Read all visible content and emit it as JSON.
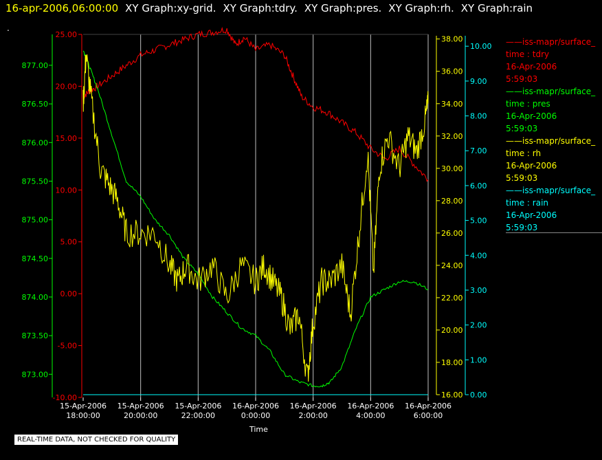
{
  "header": {
    "timestamp": "16-apr-2006,06:00:00",
    "graphs": [
      "XY Graph:xy-grid.",
      "XY Graph:tdry.",
      "XY Graph:pres.",
      "XY Graph:rh.",
      "XY Graph:rain"
    ],
    "dot": "."
  },
  "notice": "REAL-TIME DATA, NOT CHECKED FOR QUALITY",
  "colors": {
    "tdry": "#ff0000",
    "pres": "#00ff00",
    "rh": "#ffff00",
    "rain": "#00ffff",
    "grid": "#c0c0c0"
  },
  "legend": [
    {
      "name": "iss-mapr/surface_",
      "var": "time : tdry",
      "date": "16-Apr-2006",
      "time": "5:59:03",
      "color": "#ff0000"
    },
    {
      "name": "iss-mapr/surface_",
      "var": "time : pres",
      "date": "16-Apr-2006",
      "time": "5:59:03",
      "color": "#00ff00"
    },
    {
      "name": "iss-mapr/surface_",
      "var": "time : rh",
      "date": "16-Apr-2006",
      "time": "5:59:03",
      "color": "#ffff00"
    },
    {
      "name": "iss-mapr/surface_",
      "var": "time : rain",
      "date": "16-Apr-2006",
      "time": "5:59:03",
      "color": "#00ffff"
    }
  ],
  "chart_data": {
    "type": "line",
    "xlabel": "Time",
    "x_range_hours": [
      18.0,
      30.0
    ],
    "x_ticks": [
      {
        "date": "15-Apr-2006",
        "time": "18:00:00",
        "h": 18
      },
      {
        "date": "15-Apr-2006",
        "time": "20:00:00",
        "h": 20
      },
      {
        "date": "15-Apr-2006",
        "time": "22:00:00",
        "h": 22
      },
      {
        "date": "16-Apr-2006",
        "time": "0:00:00",
        "h": 24
      },
      {
        "date": "16-Apr-2006",
        "time": "2:00:00",
        "h": 26
      },
      {
        "date": "16-Apr-2006",
        "time": "4:00:00",
        "h": 28
      },
      {
        "date": "16-Apr-2006",
        "time": "6:00:00",
        "h": 30
      }
    ],
    "axes": {
      "tdry": {
        "min": -10,
        "max": 25,
        "ticks": [
          "25.00",
          "20.00",
          "15.00",
          "10.00",
          "5.00",
          "0.00",
          "-5.00",
          "-10.00"
        ]
      },
      "pres": {
        "min": 872.7,
        "max": 877.4,
        "ticks": [
          "877.00",
          "876.50",
          "876.00",
          "875.50",
          "875.00",
          "874.50",
          "874.00",
          "873.50",
          "873.00"
        ]
      },
      "rh": {
        "min": 16,
        "max": 38.2,
        "ticks": [
          "38.00",
          "36.00",
          "34.00",
          "32.00",
          "30.00",
          "28.00",
          "26.00",
          "24.00",
          "22.00",
          "20.00",
          "18.00",
          "16.00"
        ]
      },
      "rain": {
        "min": 0,
        "max": 10.3,
        "ticks": [
          "10.00",
          "9.00",
          "8.00",
          "7.00",
          "6.00",
          "5.00",
          "4.00",
          "3.00",
          "2.00",
          "1.00",
          "0.00"
        ]
      }
    },
    "series": [
      {
        "name": "tdry",
        "x": [
          18.0,
          18.2,
          18.5,
          19.0,
          19.5,
          20.0,
          20.5,
          21.0,
          21.5,
          22.0,
          22.5,
          23.0,
          23.3,
          23.6,
          24.0,
          24.5,
          25.0,
          25.3,
          25.6,
          26.0,
          26.5,
          27.0,
          27.5,
          28.0,
          28.5,
          29.0,
          29.5,
          30.0
        ],
        "y": [
          19.0,
          19.5,
          20.0,
          21.0,
          22.0,
          23.0,
          23.5,
          24.0,
          24.5,
          25.0,
          25.2,
          25.5,
          24.0,
          24.7,
          23.5,
          24.0,
          23.0,
          21.0,
          19.0,
          18.0,
          17.5,
          16.5,
          15.5,
          14.0,
          13.0,
          14.0,
          12.5,
          11.0
        ]
      },
      {
        "name": "pres",
        "x": [
          18.0,
          18.2,
          18.5,
          19.0,
          19.5,
          20.0,
          20.5,
          21.0,
          21.5,
          22.0,
          22.5,
          23.0,
          23.5,
          24.0,
          24.5,
          25.0,
          25.5,
          26.0,
          26.3,
          26.6,
          27.0,
          27.5,
          28.0,
          28.5,
          29.0,
          29.5,
          30.0
        ],
        "y": [
          877.2,
          877.0,
          876.7,
          876.1,
          875.5,
          875.3,
          875.0,
          874.8,
          874.5,
          874.3,
          874.0,
          873.8,
          873.6,
          873.5,
          873.3,
          873.0,
          872.9,
          872.85,
          872.85,
          872.9,
          873.1,
          873.6,
          874.0,
          874.1,
          874.2,
          874.2,
          874.1
        ]
      },
      {
        "name": "rh",
        "x": [
          18.0,
          18.1,
          18.3,
          18.6,
          18.9,
          19.2,
          19.5,
          20.0,
          20.5,
          21.0,
          21.3,
          21.6,
          22.0,
          22.5,
          23.0,
          23.5,
          24.0,
          24.3,
          24.6,
          24.9,
          25.2,
          25.5,
          25.8,
          26.0,
          26.3,
          26.6,
          27.0,
          27.3,
          27.6,
          27.9,
          28.1,
          28.3,
          28.6,
          29.0,
          29.3,
          29.6,
          29.9,
          30.0
        ],
        "y": [
          34.0,
          37.0,
          34.0,
          30.0,
          29.0,
          28.0,
          26.0,
          26.0,
          26.0,
          24.0,
          23.0,
          24.0,
          23.0,
          24.0,
          22.0,
          24.0,
          23.0,
          24.0,
          23.0,
          22.0,
          20.0,
          21.0,
          17.0,
          20.5,
          23.0,
          23.0,
          24.0,
          21.0,
          26.0,
          31.0,
          23.5,
          30.0,
          32.0,
          30.0,
          32.0,
          31.0,
          33.0,
          34.0
        ]
      },
      {
        "name": "rain",
        "x": [
          18.0,
          30.0
        ],
        "y": [
          0.0,
          0.0
        ]
      }
    ]
  }
}
